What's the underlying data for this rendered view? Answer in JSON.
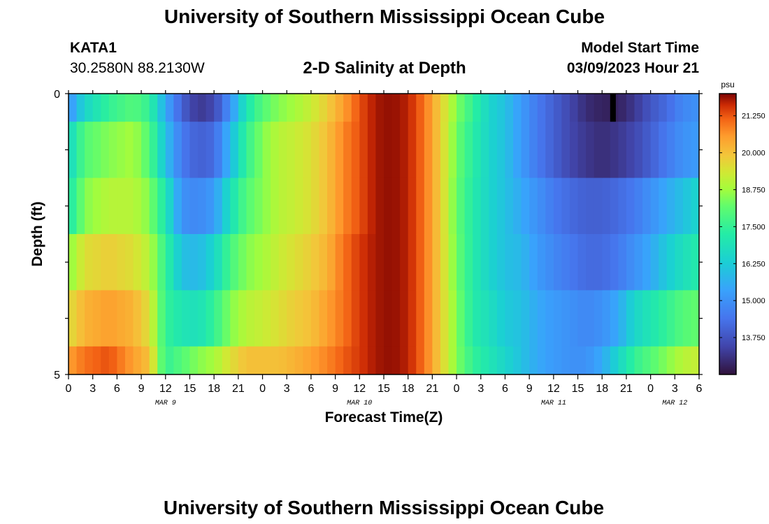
{
  "page": {
    "title": "University of Southern Mississippi Ocean Cube",
    "footer_title": "University of Southern Mississippi Ocean Cube",
    "station": "KATA1",
    "coords": "30.2580N  88.2130W",
    "subtitle": "2-D Salinity at Depth",
    "model_label": "Model Start Time",
    "model_time": "03/09/2023 Hour 21"
  },
  "chart_data": {
    "type": "heatmap",
    "title": "2-D Salinity at Depth",
    "xlabel": "Forecast Time(Z)",
    "ylabel": "Depth (ft)",
    "x_ticks": [
      "0",
      "3",
      "6",
      "9",
      "12",
      "15",
      "18",
      "21",
      "0",
      "3",
      "6",
      "9",
      "12",
      "15",
      "18",
      "21",
      "0",
      "3",
      "6",
      "9",
      "12",
      "15",
      "18",
      "21",
      "0",
      "3",
      "6"
    ],
    "date_labels": [
      {
        "label": "MAR 9",
        "hour": 12
      },
      {
        "label": "MAR 10",
        "hour": 36
      },
      {
        "label": "MAR 11",
        "hour": 60
      },
      {
        "label": "MAR 12",
        "hour": 75
      }
    ],
    "x_range_hours": [
      0,
      78
    ],
    "y_ticks": [
      "0",
      "5"
    ],
    "y_range_ft": [
      0,
      5
    ],
    "depth_levels_ft": [
      0.25,
      0.75,
      1.75,
      2.75,
      3.75,
      4.75
    ],
    "colorbar": {
      "unit": "psu",
      "min": 12.5,
      "max": 22.0,
      "tick_labels": [
        "21.250",
        "20.000",
        "18.750",
        "17.500",
        "16.250",
        "15.000",
        "13.750"
      ],
      "tick_values": [
        21.25,
        20.0,
        18.75,
        17.5,
        16.25,
        15.0,
        13.75
      ]
    },
    "profiles": [
      {
        "hour": 0,
        "values": [
          15.0,
          16.5,
          17.0,
          18.5,
          19.5,
          20.5
        ]
      },
      {
        "hour": 2,
        "values": [
          16.5,
          18.0,
          18.5,
          19.5,
          20.2,
          21.0
        ]
      },
      {
        "hour": 5,
        "values": [
          17.5,
          18.5,
          19.0,
          19.8,
          20.5,
          21.3
        ]
      },
      {
        "hour": 8,
        "values": [
          18.0,
          18.8,
          19.0,
          19.5,
          20.2,
          20.5
        ]
      },
      {
        "hour": 10,
        "values": [
          17.5,
          18.0,
          18.5,
          19.0,
          19.5,
          20.0
        ]
      },
      {
        "hour": 12,
        "values": [
          15.5,
          16.0,
          17.0,
          17.5,
          17.5,
          17.5
        ]
      },
      {
        "hour": 14,
        "values": [
          14.0,
          14.5,
          15.0,
          16.0,
          17.0,
          18.0
        ]
      },
      {
        "hour": 16,
        "values": [
          13.2,
          14.0,
          14.8,
          15.8,
          16.8,
          18.5
        ]
      },
      {
        "hour": 18,
        "values": [
          13.5,
          14.2,
          15.2,
          16.5,
          17.5,
          18.8
        ]
      },
      {
        "hour": 20,
        "values": [
          15.0,
          15.8,
          16.8,
          17.8,
          18.5,
          19.5
        ]
      },
      {
        "hour": 22,
        "values": [
          17.0,
          17.5,
          18.0,
          18.5,
          19.0,
          20.0
        ]
      },
      {
        "hour": 24,
        "values": [
          18.0,
          18.5,
          18.5,
          18.8,
          19.2,
          20.0
        ]
      },
      {
        "hour": 26,
        "values": [
          18.5,
          19.0,
          19.0,
          19.2,
          19.5,
          20.0
        ]
      },
      {
        "hour": 28,
        "values": [
          18.8,
          19.2,
          19.2,
          19.5,
          19.8,
          20.2
        ]
      },
      {
        "hour": 30,
        "values": [
          19.2,
          19.5,
          19.5,
          19.8,
          20.0,
          20.5
        ]
      },
      {
        "hour": 32,
        "values": [
          19.8,
          20.0,
          20.0,
          20.2,
          20.5,
          20.8
        ]
      },
      {
        "hour": 34,
        "values": [
          20.5,
          20.8,
          20.8,
          21.0,
          21.0,
          21.2
        ]
      },
      {
        "hour": 36,
        "values": [
          21.3,
          21.3,
          21.3,
          21.5,
          21.5,
          21.5
        ]
      },
      {
        "hour": 38,
        "values": [
          21.8,
          21.8,
          21.8,
          21.8,
          21.8,
          21.8
        ]
      },
      {
        "hour": 40,
        "values": [
          21.9,
          21.9,
          21.9,
          21.9,
          21.9,
          21.9
        ]
      },
      {
        "hour": 42,
        "values": [
          21.7,
          21.7,
          21.7,
          21.7,
          21.7,
          21.7
        ]
      },
      {
        "hour": 44,
        "values": [
          21.0,
          21.0,
          21.0,
          21.0,
          21.0,
          21.0
        ]
      },
      {
        "hour": 46,
        "values": [
          19.8,
          19.8,
          19.8,
          19.8,
          19.8,
          19.8
        ]
      },
      {
        "hour": 48,
        "values": [
          18.5,
          18.3,
          18.2,
          18.3,
          18.5,
          18.5
        ]
      },
      {
        "hour": 50,
        "values": [
          17.5,
          17.3,
          17.2,
          17.2,
          17.2,
          17.5
        ]
      },
      {
        "hour": 52,
        "values": [
          16.5,
          16.5,
          16.5,
          16.5,
          16.8,
          17.0
        ]
      },
      {
        "hour": 54,
        "values": [
          16.0,
          16.0,
          16.0,
          16.0,
          16.2,
          16.5
        ]
      },
      {
        "hour": 56,
        "values": [
          15.2,
          15.2,
          15.5,
          15.8,
          16.0,
          16.0
        ]
      },
      {
        "hour": 58,
        "values": [
          14.5,
          14.5,
          15.0,
          15.2,
          15.5,
          15.5
        ]
      },
      {
        "hour": 60,
        "values": [
          14.0,
          14.0,
          14.5,
          14.8,
          15.2,
          15.2
        ]
      },
      {
        "hour": 62,
        "values": [
          13.5,
          13.5,
          14.2,
          14.5,
          15.0,
          15.0
        ]
      },
      {
        "hour": 64,
        "values": [
          13.0,
          13.2,
          14.0,
          14.2,
          14.8,
          15.0
        ]
      },
      {
        "hour": 66,
        "values": [
          12.8,
          13.0,
          14.0,
          14.2,
          15.0,
          15.5
        ]
      },
      {
        "hour": 68,
        "values": [
          12.8,
          13.2,
          14.2,
          14.5,
          15.5,
          16.5
        ]
      },
      {
        "hour": 70,
        "values": [
          13.2,
          13.5,
          14.5,
          15.0,
          16.5,
          17.5
        ]
      },
      {
        "hour": 72,
        "values": [
          13.8,
          14.0,
          15.0,
          15.5,
          17.0,
          18.0
        ]
      },
      {
        "hour": 74,
        "values": [
          14.2,
          14.5,
          15.5,
          16.2,
          17.5,
          18.5
        ]
      },
      {
        "hour": 76,
        "values": [
          14.8,
          15.0,
          16.0,
          16.8,
          18.0,
          19.0
        ]
      },
      {
        "hour": 78,
        "values": [
          15.0,
          15.2,
          16.5,
          17.2,
          18.2,
          19.2
        ]
      }
    ],
    "missing_marker": {
      "hour": 67,
      "depth_ft": 0.25
    }
  }
}
